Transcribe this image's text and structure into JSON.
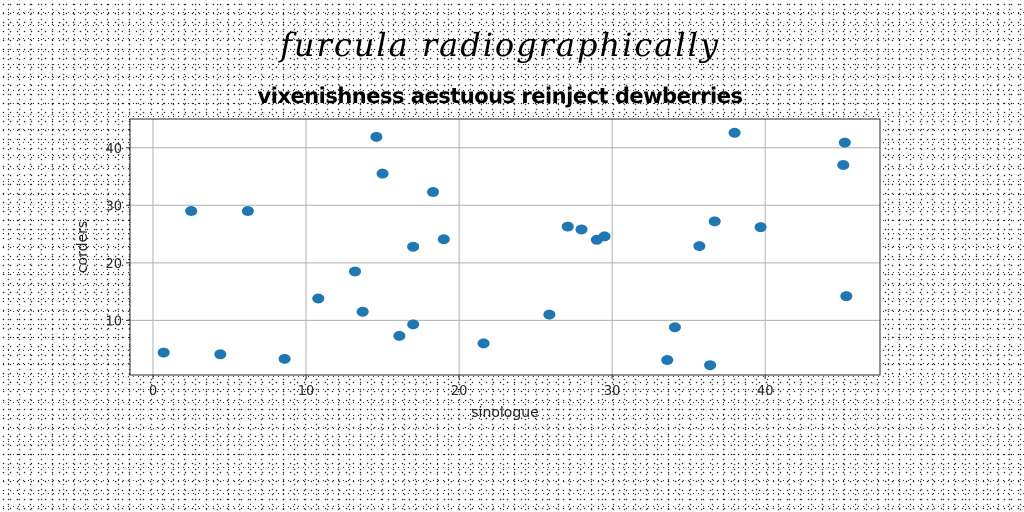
{
  "chart_data": {
    "type": "scatter",
    "title": "furcula radiographically",
    "subtitle": "vixenishness aestuous reinject dewberries",
    "xlabel": "sinologue",
    "ylabel": "corders",
    "xlim": [
      -1.5,
      47.5
    ],
    "ylim": [
      0.5,
      45
    ],
    "x_ticks": [
      0,
      10,
      20,
      30,
      40
    ],
    "y_ticks": [
      10,
      20,
      30,
      40
    ],
    "grid": true,
    "color": "#1f77b4",
    "points": [
      {
        "x": 0.7,
        "y": 4.4
      },
      {
        "x": 2.5,
        "y": 29.0
      },
      {
        "x": 4.4,
        "y": 4.1
      },
      {
        "x": 6.2,
        "y": 29.0
      },
      {
        "x": 8.6,
        "y": 3.3
      },
      {
        "x": 10.8,
        "y": 13.8
      },
      {
        "x": 13.2,
        "y": 18.5
      },
      {
        "x": 13.7,
        "y": 11.5
      },
      {
        "x": 14.6,
        "y": 41.9
      },
      {
        "x": 15.0,
        "y": 35.5
      },
      {
        "x": 16.1,
        "y": 7.3
      },
      {
        "x": 17.0,
        "y": 9.3
      },
      {
        "x": 17.0,
        "y": 22.8
      },
      {
        "x": 18.3,
        "y": 32.3
      },
      {
        "x": 19.0,
        "y": 24.1
      },
      {
        "x": 21.6,
        "y": 6.0
      },
      {
        "x": 25.9,
        "y": 11.0
      },
      {
        "x": 27.1,
        "y": 26.3
      },
      {
        "x": 28.0,
        "y": 25.8
      },
      {
        "x": 29.0,
        "y": 24.0
      },
      {
        "x": 29.5,
        "y": 24.6
      },
      {
        "x": 33.6,
        "y": 3.1
      },
      {
        "x": 34.1,
        "y": 8.8
      },
      {
        "x": 35.7,
        "y": 22.9
      },
      {
        "x": 36.4,
        "y": 2.2
      },
      {
        "x": 36.7,
        "y": 27.2
      },
      {
        "x": 38.0,
        "y": 42.6
      },
      {
        "x": 39.7,
        "y": 26.2
      },
      {
        "x": 45.1,
        "y": 37.0
      },
      {
        "x": 45.2,
        "y": 40.9
      },
      {
        "x": 45.3,
        "y": 14.2
      }
    ]
  }
}
